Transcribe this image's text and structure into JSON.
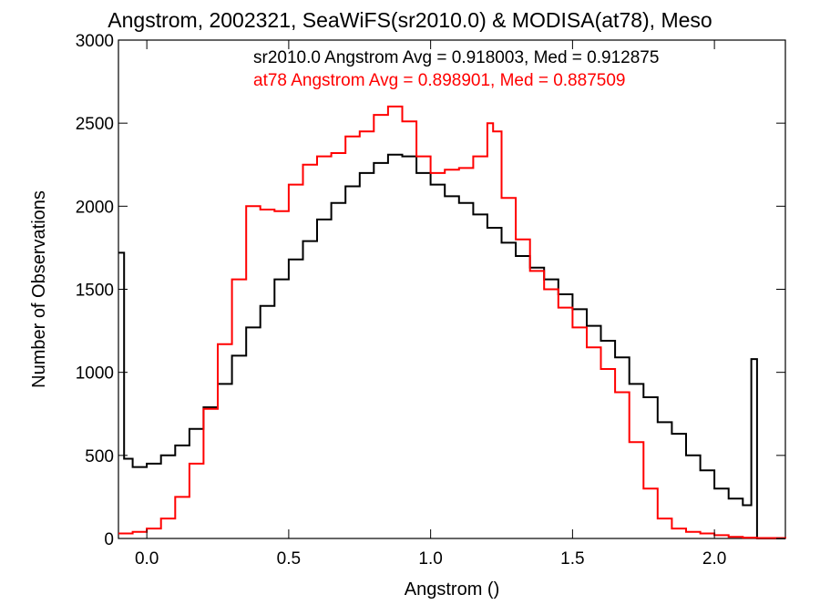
{
  "chart_data": {
    "type": "line",
    "title": "Angstrom, 2002321, SeaWiFS(sr2010.0) & MODISA(at78), Meso",
    "xlabel": "Angstrom ()",
    "ylabel": "Number of Observations",
    "xlim": [
      -0.1,
      2.25
    ],
    "ylim": [
      0,
      3000
    ],
    "x_ticks": [
      0.0,
      0.5,
      1.0,
      1.5,
      2.0
    ],
    "x_tick_labels": [
      "0.0",
      "0.5",
      "1.0",
      "1.5",
      "2.0"
    ],
    "y_ticks": [
      0,
      500,
      1000,
      1500,
      2000,
      2500,
      3000
    ],
    "y_tick_labels": [
      "0",
      "500",
      "1000",
      "1500",
      "2000",
      "2500",
      "3000"
    ],
    "grid": false,
    "legend_placement": "top-right",
    "annotations": [
      {
        "text": "sr2010.0 Angstrom Avg = 0.918003, Med = 0.912875",
        "color": "#000000"
      },
      {
        "text": "at78 Angstrom Avg = 0.898901, Med = 0.887509",
        "color": "#ff0000"
      }
    ],
    "series": [
      {
        "color": "#000000",
        "x": [
          -0.1,
          -0.08,
          -0.05,
          0.0,
          0.05,
          0.1,
          0.15,
          0.2,
          0.25,
          0.3,
          0.35,
          0.4,
          0.45,
          0.5,
          0.55,
          0.6,
          0.65,
          0.7,
          0.75,
          0.8,
          0.85,
          0.9,
          0.95,
          1.0,
          1.05,
          1.1,
          1.15,
          1.2,
          1.25,
          1.3,
          1.35,
          1.4,
          1.45,
          1.5,
          1.55,
          1.6,
          1.65,
          1.7,
          1.75,
          1.8,
          1.85,
          1.9,
          1.95,
          2.0,
          2.05,
          2.1,
          2.13,
          2.15,
          2.16,
          2.2,
          2.25
        ],
        "values": [
          1720,
          480,
          430,
          450,
          500,
          560,
          660,
          790,
          930,
          1100,
          1270,
          1400,
          1560,
          1680,
          1790,
          1920,
          2020,
          2120,
          2200,
          2260,
          2310,
          2300,
          2200,
          2130,
          2060,
          2020,
          1950,
          1870,
          1780,
          1700,
          1630,
          1560,
          1470,
          1380,
          1280,
          1190,
          1090,
          930,
          850,
          700,
          630,
          500,
          410,
          300,
          240,
          200,
          1080,
          0,
          0,
          0,
          0
        ]
      },
      {
        "color": "#ff0000",
        "x": [
          -0.1,
          -0.05,
          0.0,
          0.05,
          0.1,
          0.15,
          0.2,
          0.25,
          0.3,
          0.35,
          0.4,
          0.45,
          0.5,
          0.55,
          0.6,
          0.65,
          0.7,
          0.75,
          0.8,
          0.85,
          0.9,
          0.95,
          1.0,
          1.05,
          1.1,
          1.15,
          1.2,
          1.22,
          1.25,
          1.3,
          1.35,
          1.4,
          1.45,
          1.5,
          1.55,
          1.6,
          1.65,
          1.7,
          1.75,
          1.8,
          1.85,
          1.9,
          1.95,
          2.0,
          2.05,
          2.1,
          2.15,
          2.25
        ],
        "values": [
          30,
          40,
          60,
          120,
          250,
          450,
          780,
          1170,
          1560,
          2000,
          1980,
          1970,
          2130,
          2250,
          2300,
          2320,
          2420,
          2450,
          2550,
          2600,
          2510,
          2300,
          2200,
          2220,
          2230,
          2300,
          2500,
          2450,
          2050,
          1800,
          1610,
          1500,
          1390,
          1270,
          1150,
          1020,
          880,
          580,
          300,
          120,
          60,
          40,
          30,
          20,
          10,
          5,
          3,
          0
        ]
      }
    ]
  }
}
